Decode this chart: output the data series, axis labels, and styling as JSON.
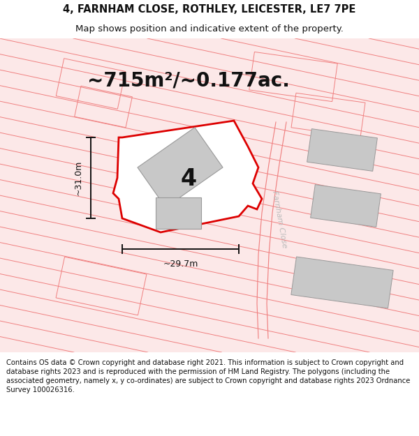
{
  "title_line1": "4, FARNHAM CLOSE, ROTHLEY, LEICESTER, LE7 7PE",
  "title_line2": "Map shows position and indicative extent of the property.",
  "area_label": "~715m²/~0.177ac.",
  "dim_h": "~31.0m",
  "dim_w": "~29.7m",
  "number_label": "4",
  "road_label": "Farnham Close",
  "footer": "Contains OS data © Crown copyright and database right 2021. This information is subject to Crown copyright and database rights 2023 and is reproduced with the permission of HM Land Registry. The polygons (including the associated geometry, namely x, y co-ordinates) are subject to Crown copyright and database rights 2023 Ordnance Survey 100026316.",
  "bg_color": "#ffffff",
  "map_bg": "#fce8e8",
  "road_line_color": "#f08080",
  "property_fill": "#ffffff",
  "property_edge": "#dd0000",
  "building_fill": "#c8c8c8",
  "building_edge": "#999999",
  "dim_color": "#111111",
  "title_fontsize": 10.5,
  "subtitle_fontsize": 9.5,
  "area_fontsize": 20,
  "number_fontsize": 24,
  "road_label_fontsize": 8,
  "footer_fontsize": 7.2,
  "road_lw": 0.7,
  "property_lw": 2.0,
  "dim_lw": 1.4
}
